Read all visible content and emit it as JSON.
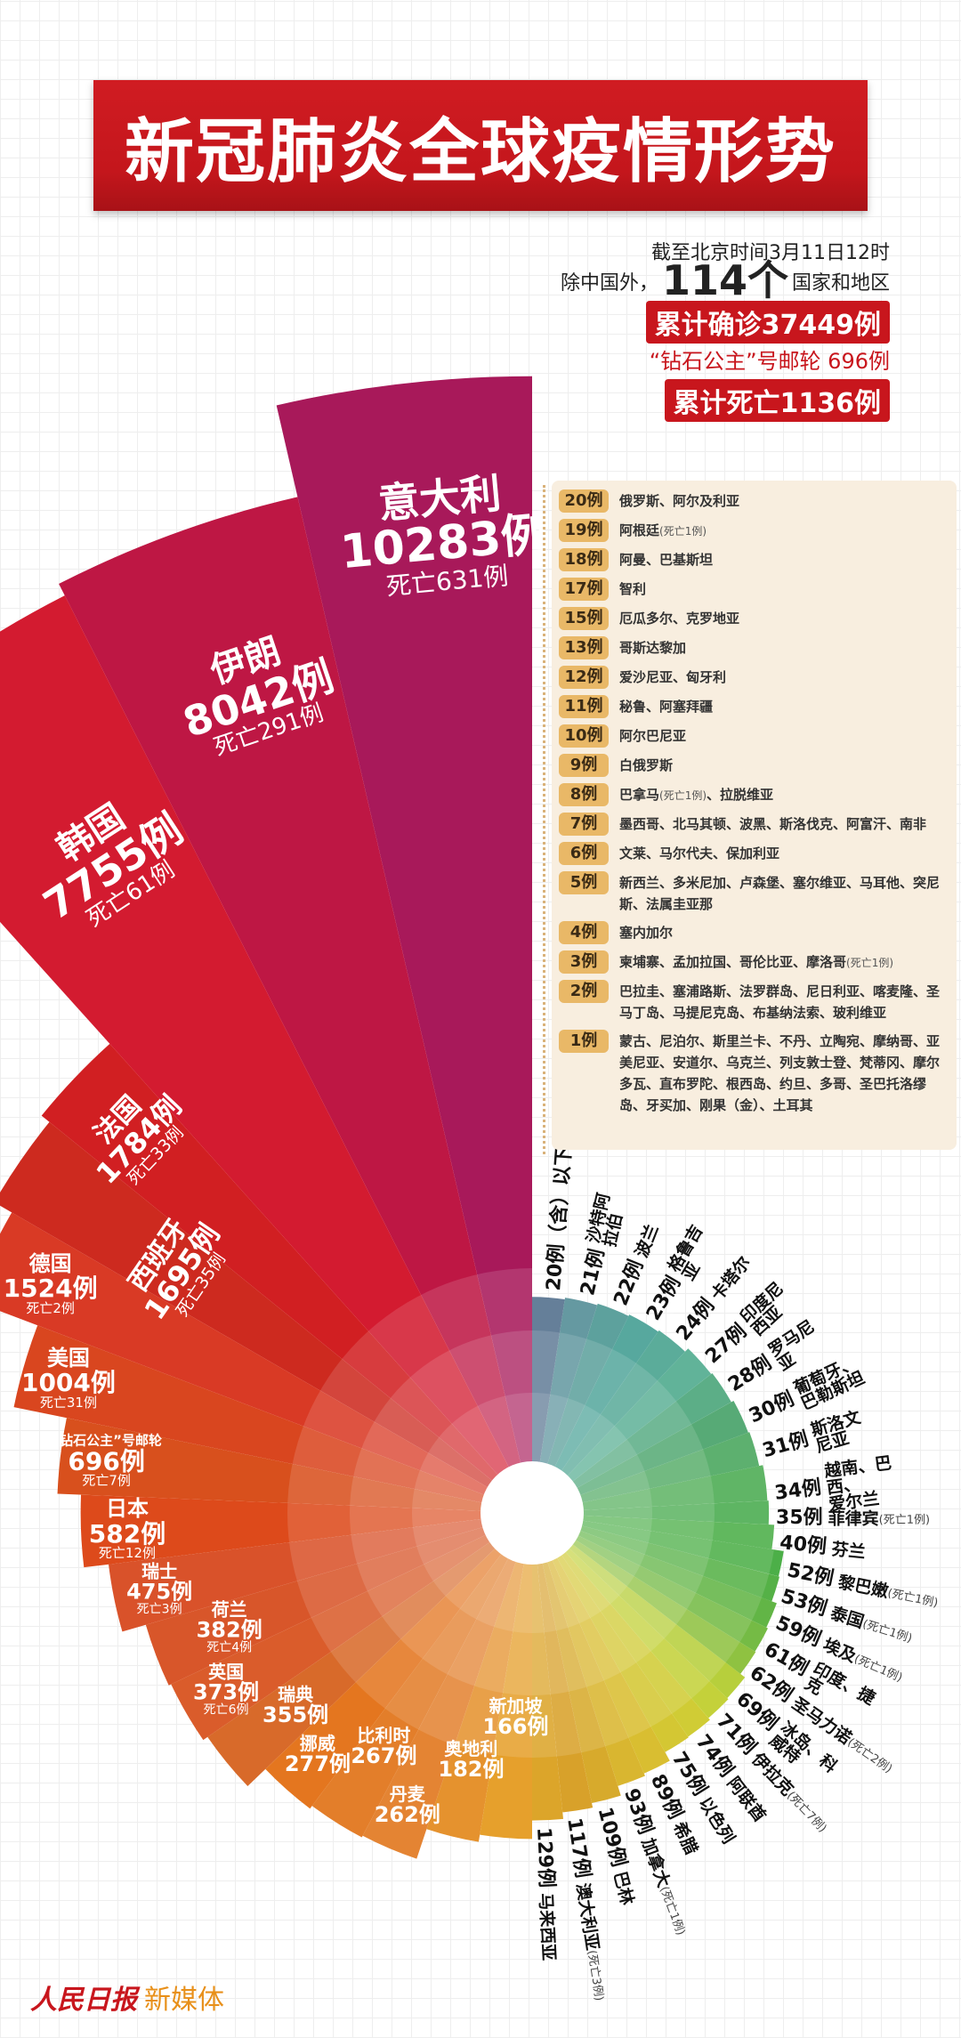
{
  "title": "新冠肺炎全球疫情形势",
  "header": {
    "as_of": "截至北京时间3月11日12时",
    "countries_prefix": "除中国外，",
    "countries_count": "114个",
    "countries_suffix": "国家和地区",
    "total_confirmed": "累计确诊37449例",
    "cruise_ship": "“钻石公主”号邮轮 696例",
    "total_deaths": "累计死亡1136例"
  },
  "legend": [
    {
      "badge": "20例",
      "text": "俄罗斯、阿尔及利亚"
    },
    {
      "badge": "19例",
      "text": "阿根廷",
      "note": "(死亡1例)"
    },
    {
      "badge": "18例",
      "text": "阿曼、巴基斯坦"
    },
    {
      "badge": "17例",
      "text": "智利"
    },
    {
      "badge": "15例",
      "text": "厄瓜多尔、克罗地亚"
    },
    {
      "badge": "13例",
      "text": "哥斯达黎加"
    },
    {
      "badge": "12例",
      "text": "爱沙尼亚、匈牙利"
    },
    {
      "badge": "11例",
      "text": "秘鲁、阿塞拜疆"
    },
    {
      "badge": "10例",
      "text": "阿尔巴尼亚"
    },
    {
      "badge": "9例",
      "text": "白俄罗斯"
    },
    {
      "badge": "8例",
      "text": "巴拿马",
      "note": "(死亡1例)",
      "text2": "、拉脱维亚"
    },
    {
      "badge": "7例",
      "text": "墨西哥、北马其顿、波黑、斯洛伐克、阿富汗、南非"
    },
    {
      "badge": "6例",
      "text": "文莱、马尔代夫、保加利亚"
    },
    {
      "badge": "5例",
      "text": "新西兰、多米尼加、卢森堡、塞尔维亚、马耳他、突尼斯、法属圭亚那"
    },
    {
      "badge": "4例",
      "text": "塞内加尔"
    },
    {
      "badge": "3例",
      "text": "柬埔寨、孟加拉国、哥伦比亚、摩洛哥",
      "note": "(死亡1例)"
    },
    {
      "badge": "2例",
      "text": "巴拉圭、塞浦路斯、法罗群岛、尼日利亚、喀麦隆、圣马丁岛、马提尼克岛、布基纳法索、玻利维亚"
    },
    {
      "badge": "1例",
      "text": "蒙古、尼泊尔、斯里兰卡、不丹、立陶宛、摩纳哥、亚美尼亚、安道尔、乌克兰、列支敦士登、梵蒂冈、摩尔多瓦、直布罗陀、根西岛、约旦、多哥、圣巴托洛缪岛、牙买加、刚果（金）、土耳其"
    }
  ],
  "chart_data": {
    "type": "bar",
    "coordinate_system": "polar",
    "unit": "例",
    "death_prefix": "死亡",
    "major": [
      {
        "name": "意大利",
        "cases": 10283,
        "deaths": 631,
        "color": "#a8195a"
      },
      {
        "name": "伊朗",
        "cases": 8042,
        "deaths": 291,
        "color": "#be1744"
      },
      {
        "name": "韩国",
        "cases": 7755,
        "deaths": 61,
        "color": "#d31b30"
      },
      {
        "name": "法国",
        "cases": 1784,
        "deaths": 33,
        "color": "#d11f22"
      },
      {
        "name": "西班牙",
        "cases": 1695,
        "deaths": 35,
        "color": "#cd2a1f"
      },
      {
        "name": "德国",
        "cases": 1524,
        "deaths": 2,
        "color": "#d93a25"
      },
      {
        "name": "美国",
        "cases": 1004,
        "deaths": 31,
        "color": "#d9461f"
      },
      {
        "name": "“钻石公主”号邮轮",
        "cases": 696,
        "deaths": 7,
        "color": "#d8501d"
      },
      {
        "name": "日本",
        "cases": 582,
        "deaths": 12,
        "color": "#dd4a1b"
      },
      {
        "name": "瑞士",
        "cases": 475,
        "deaths": 3,
        "color": "#d9522a"
      },
      {
        "name": "荷兰",
        "cases": 382,
        "deaths": 4,
        "color": "#d8562a"
      },
      {
        "name": "英国",
        "cases": 373,
        "deaths": 6,
        "color": "#da5c2b"
      },
      {
        "name": "瑞典",
        "cases": 355,
        "color": "#d86a2a"
      },
      {
        "name": "挪威",
        "cases": 277,
        "color": "#e4761f"
      },
      {
        "name": "比利时",
        "cases": 267,
        "color": "#e37e2a"
      },
      {
        "name": "丹麦",
        "cases": 262,
        "color": "#e48433"
      },
      {
        "name": "奥地利",
        "cases": 182,
        "color": "#e5922e"
      },
      {
        "name": "新加坡",
        "cases": 166,
        "color": "#e6a02c"
      }
    ],
    "minor": [
      {
        "label": "129例",
        "names": "马来西亚",
        "cases": 129,
        "color": "#dca52a"
      },
      {
        "label": "117例",
        "names": "澳大利亚",
        "note": "(死亡3例)",
        "cases": 117,
        "color": "#d8a12a"
      },
      {
        "label": "109例",
        "names": "巴林",
        "cases": 109,
        "color": "#d7aa2c"
      },
      {
        "label": "93例",
        "names": "加拿大",
        "note": "(死亡1例)",
        "cases": 93,
        "color": "#d9b630"
      },
      {
        "label": "89例",
        "names": "希腊",
        "cases": 89,
        "color": "#d9be31"
      },
      {
        "label": "75例",
        "names": "以色列",
        "cases": 75,
        "color": "#d4c733"
      },
      {
        "label": "74例",
        "names": "阿联酋",
        "cases": 74,
        "color": "#d0cc35"
      },
      {
        "label": "71例",
        "names": "伊拉克",
        "note": "(死亡7例)",
        "cases": 71,
        "color": "#c4d13a"
      },
      {
        "label": "69例",
        "names": "冰岛、科威特",
        "cases": 69,
        "color": "#b7cf3c"
      },
      {
        "label": "62例",
        "names": "圣马力诺",
        "note": "(死亡2例)",
        "cases": 62,
        "color": "#8fc241"
      },
      {
        "label": "61例",
        "names": "印度、捷克",
        "cases": 61,
        "color": "#75bb45"
      },
      {
        "label": "59例",
        "names": "埃及",
        "note": "(死亡1例)",
        "cases": 59,
        "color": "#62b546"
      },
      {
        "label": "53例",
        "names": "泰国",
        "note": "(死亡1例)",
        "cases": 53,
        "color": "#55b147"
      },
      {
        "label": "52例",
        "names": "黎巴嫩",
        "note": "(死亡1例)",
        "cases": 52,
        "color": "#4caf48"
      },
      {
        "label": "40例",
        "names": "芬兰",
        "cases": 40,
        "color": "#4aae47"
      },
      {
        "label": "35例",
        "names": "菲律宾",
        "note": "(死亡1例)",
        "cases": 35,
        "color": "#47ab4c"
      },
      {
        "label": "34例",
        "names": "越南、巴西、\n爱尔兰",
        "cases": 34,
        "color": "#49ab50"
      },
      {
        "label": "31例",
        "names": "斯洛文尼亚",
        "cases": 31,
        "color": "#45a55a"
      },
      {
        "label": "30例",
        "names": "葡萄牙、巴勒斯坦",
        "cases": 30,
        "color": "#3f9e62"
      },
      {
        "label": "28例",
        "names": "罗马尼亚",
        "cases": 28,
        "color": "#44a276"
      },
      {
        "label": "27例",
        "names": "印度尼西亚",
        "cases": 27,
        "color": "#4aa88a"
      },
      {
        "label": "24例",
        "names": "卡塔尔",
        "cases": 24,
        "color": "#43a08c"
      },
      {
        "label": "23例",
        "names": "格鲁吉亚",
        "cases": 23,
        "color": "#3f9c90"
      },
      {
        "label": "22例",
        "names": "波兰",
        "cases": 22,
        "color": "#46948f"
      },
      {
        "label": "21例",
        "names": "沙特阿拉伯",
        "cases": 21,
        "color": "#4f8a93"
      },
      {
        "label": "20例（含）以下",
        "names": "",
        "cases": 20,
        "color": "#4f6d8a"
      }
    ]
  },
  "footer": {
    "logo": "人民日报",
    "sub": "新媒体"
  }
}
